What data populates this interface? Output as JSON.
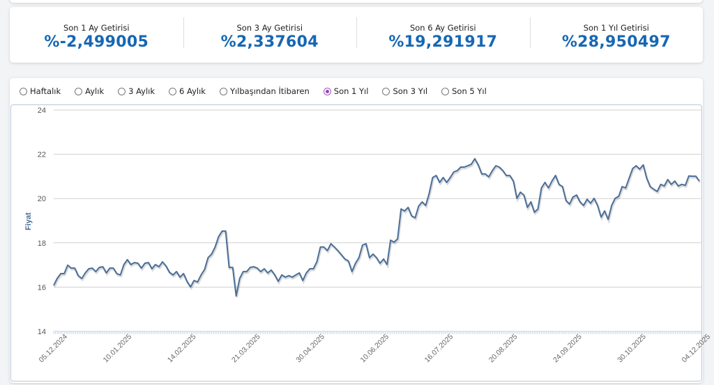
{
  "stats": [
    {
      "label": "Son 1 Ay Getirisi",
      "value": "%-2,499005"
    },
    {
      "label": "Son 3 Ay Getirisi",
      "value": "%2,337604"
    },
    {
      "label": "Son 6 Ay Getirisi",
      "value": "%19,291917"
    },
    {
      "label": "Son 1 Yıl Getirisi",
      "value": "%28,950497"
    }
  ],
  "periods": [
    {
      "label": "Haftalık",
      "selected": false
    },
    {
      "label": "Aylık",
      "selected": false
    },
    {
      "label": "3 Aylık",
      "selected": false
    },
    {
      "label": "6 Aylık",
      "selected": false
    },
    {
      "label": "Yılbaşından İtibaren",
      "selected": false
    },
    {
      "label": "Son 1 Yıl",
      "selected": true
    },
    {
      "label": "Son 3 Yıl",
      "selected": false
    },
    {
      "label": "Son 5 Yıl",
      "selected": false
    }
  ],
  "chart_data": {
    "type": "line",
    "title": "",
    "xlabel": "",
    "ylabel": "Fiyat",
    "ylim": [
      14,
      24
    ],
    "yticks": [
      14,
      16,
      18,
      20,
      22,
      24
    ],
    "xticks": [
      "05.12.2024",
      "10.01.2025",
      "14.02.2025",
      "21.03.2025",
      "30.04.2025",
      "10.06.2025",
      "16.07.2025",
      "20.08.2025",
      "24.09.2025",
      "30.10.2025",
      "04.12.2025"
    ],
    "grid": true,
    "line_color": "#4a6e98",
    "series": [
      {
        "name": "Fiyat",
        "values": [
          16.08,
          16.39,
          16.61,
          16.61,
          16.99,
          16.86,
          16.86,
          16.52,
          16.39,
          16.64,
          16.83,
          16.86,
          16.7,
          16.89,
          16.92,
          16.64,
          16.86,
          16.86,
          16.61,
          16.55,
          17.02,
          17.24,
          17.02,
          17.11,
          17.08,
          16.86,
          17.08,
          17.11,
          16.83,
          17.02,
          16.92,
          17.14,
          16.96,
          16.67,
          16.55,
          16.7,
          16.45,
          16.61,
          16.26,
          16.01,
          16.3,
          16.23,
          16.55,
          16.8,
          17.33,
          17.49,
          17.81,
          18.28,
          18.53,
          18.53,
          16.89,
          16.89,
          15.6,
          16.39,
          16.7,
          16.7,
          16.89,
          16.92,
          16.86,
          16.7,
          16.83,
          16.64,
          16.77,
          16.55,
          16.26,
          16.55,
          16.45,
          16.52,
          16.45,
          16.55,
          16.64,
          16.3,
          16.64,
          16.83,
          16.83,
          17.14,
          17.81,
          17.81,
          17.65,
          17.96,
          17.81,
          17.65,
          17.46,
          17.27,
          17.18,
          16.7,
          17.08,
          17.33,
          17.9,
          17.96,
          17.33,
          17.49,
          17.33,
          17.08,
          17.27,
          17.02,
          18.12,
          18.03,
          18.18,
          19.53,
          19.44,
          19.6,
          19.22,
          19.13,
          19.66,
          19.85,
          19.69,
          20.23,
          20.95,
          21.04,
          20.73,
          20.95,
          20.73,
          20.95,
          21.2,
          21.26,
          21.42,
          21.42,
          21.48,
          21.55,
          21.8,
          21.52,
          21.11,
          21.11,
          20.98,
          21.26,
          21.48,
          21.42,
          21.26,
          21.04,
          21.04,
          20.79,
          20.01,
          20.29,
          20.16,
          19.6,
          19.85,
          19.38,
          19.53,
          20.48,
          20.73,
          20.48,
          20.79,
          21.04,
          20.64,
          20.54,
          19.91,
          19.75,
          20.07,
          20.16,
          19.85,
          19.69,
          19.97,
          19.79,
          20.01,
          19.69,
          19.16,
          19.44,
          19.06,
          19.69,
          20.01,
          20.1,
          20.54,
          20.48,
          20.92,
          21.36,
          21.48,
          21.33,
          21.52,
          20.92,
          20.54,
          20.42,
          20.32,
          20.64,
          20.57,
          20.86,
          20.64,
          20.79,
          20.57,
          20.64,
          20.6,
          21.02,
          21.01,
          21.01,
          20.79
        ]
      }
    ]
  }
}
